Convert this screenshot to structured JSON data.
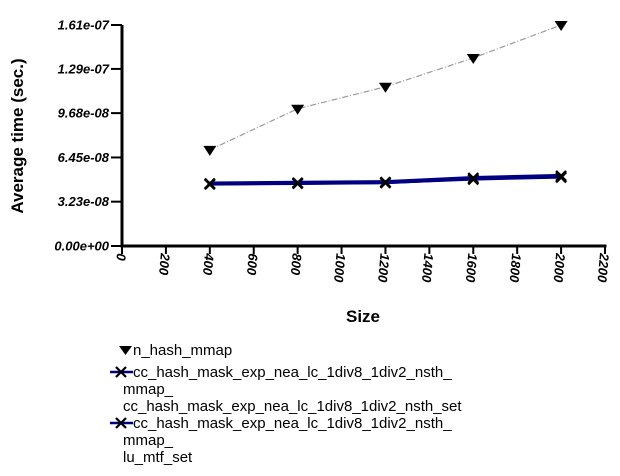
{
  "figure": {
    "background": "#ffffff"
  },
  "chart_data": {
    "type": "line",
    "title": "",
    "xlabel": "Size",
    "ylabel": "Average time (sec.)",
    "xlim": [
      0,
      2200
    ],
    "ylim": [
      0,
      1.61e-07
    ],
    "grid": false,
    "legend_position": "below-left",
    "x_ticks": [
      0,
      200,
      400,
      600,
      800,
      1000,
      1200,
      1400,
      1600,
      1800,
      2000,
      2200
    ],
    "y_ticks": [
      {
        "value": 0,
        "label": "0.00e+00"
      },
      {
        "value": 3.23e-08,
        "label": "3.23e-08"
      },
      {
        "value": 6.45e-08,
        "label": "6.45e-08"
      },
      {
        "value": 9.68e-08,
        "label": "9.68e-08"
      },
      {
        "value": 1.29e-07,
        "label": "1.29e-07"
      },
      {
        "value": 1.61e-07,
        "label": "1.61e-07"
      }
    ],
    "x": [
      400,
      800,
      1200,
      1600,
      2000
    ],
    "series": [
      {
        "name": "n_hash_mmap",
        "marker": "triangle-down",
        "marker_color": "#000000",
        "line_color": "#999999",
        "line_style": "dash-dot",
        "line_width": 1.2,
        "values": [
          7e-08,
          1e-07,
          1.16e-07,
          1.37e-07,
          1.61e-07
        ]
      },
      {
        "name": "cc_hash_mask_exp_nea_lc_1div8_1div2_nsth_mmap_cc_hash_mask_exp_nea_lc_1div8_1div2_nsth_set",
        "marker": "x",
        "marker_color": "#000000",
        "line_color": "#000080",
        "line_style": "solid",
        "line_width": 4.2,
        "values": [
          4.55e-08,
          4.6e-08,
          4.65e-08,
          4.95e-08,
          5.1e-08
        ]
      },
      {
        "name": "cc_hash_mask_exp_nea_lc_1div8_1div2_nsth_mmap_lu_mtf_set",
        "marker": "x",
        "marker_color": "#000000",
        "line_color": "#000080",
        "line_style": "solid",
        "line_width": 2.4,
        "values": [
          4.5e-08,
          4.55e-08,
          4.6e-08,
          4.85e-08,
          5e-08
        ]
      }
    ]
  },
  "legend": {
    "entries": [
      {
        "marker": "triangle-down",
        "lines": [
          "n_hash_mmap"
        ]
      },
      {
        "marker": "x-line",
        "lines": [
          "cc_hash_mask_exp_nea_lc_1div8_1div2_nsth_",
          "mmap_",
          "cc_hash_mask_exp_nea_lc_1div8_1div2_nsth_set"
        ]
      },
      {
        "marker": "x-line",
        "lines": [
          "cc_hash_mask_exp_nea_lc_1div8_1div2_nsth_",
          "mmap_",
          "lu_mtf_set"
        ]
      }
    ]
  },
  "colors": {
    "axis": "#000000",
    "series_gray": "#999999",
    "series_navy": "#000080",
    "marker_black": "#000000"
  }
}
